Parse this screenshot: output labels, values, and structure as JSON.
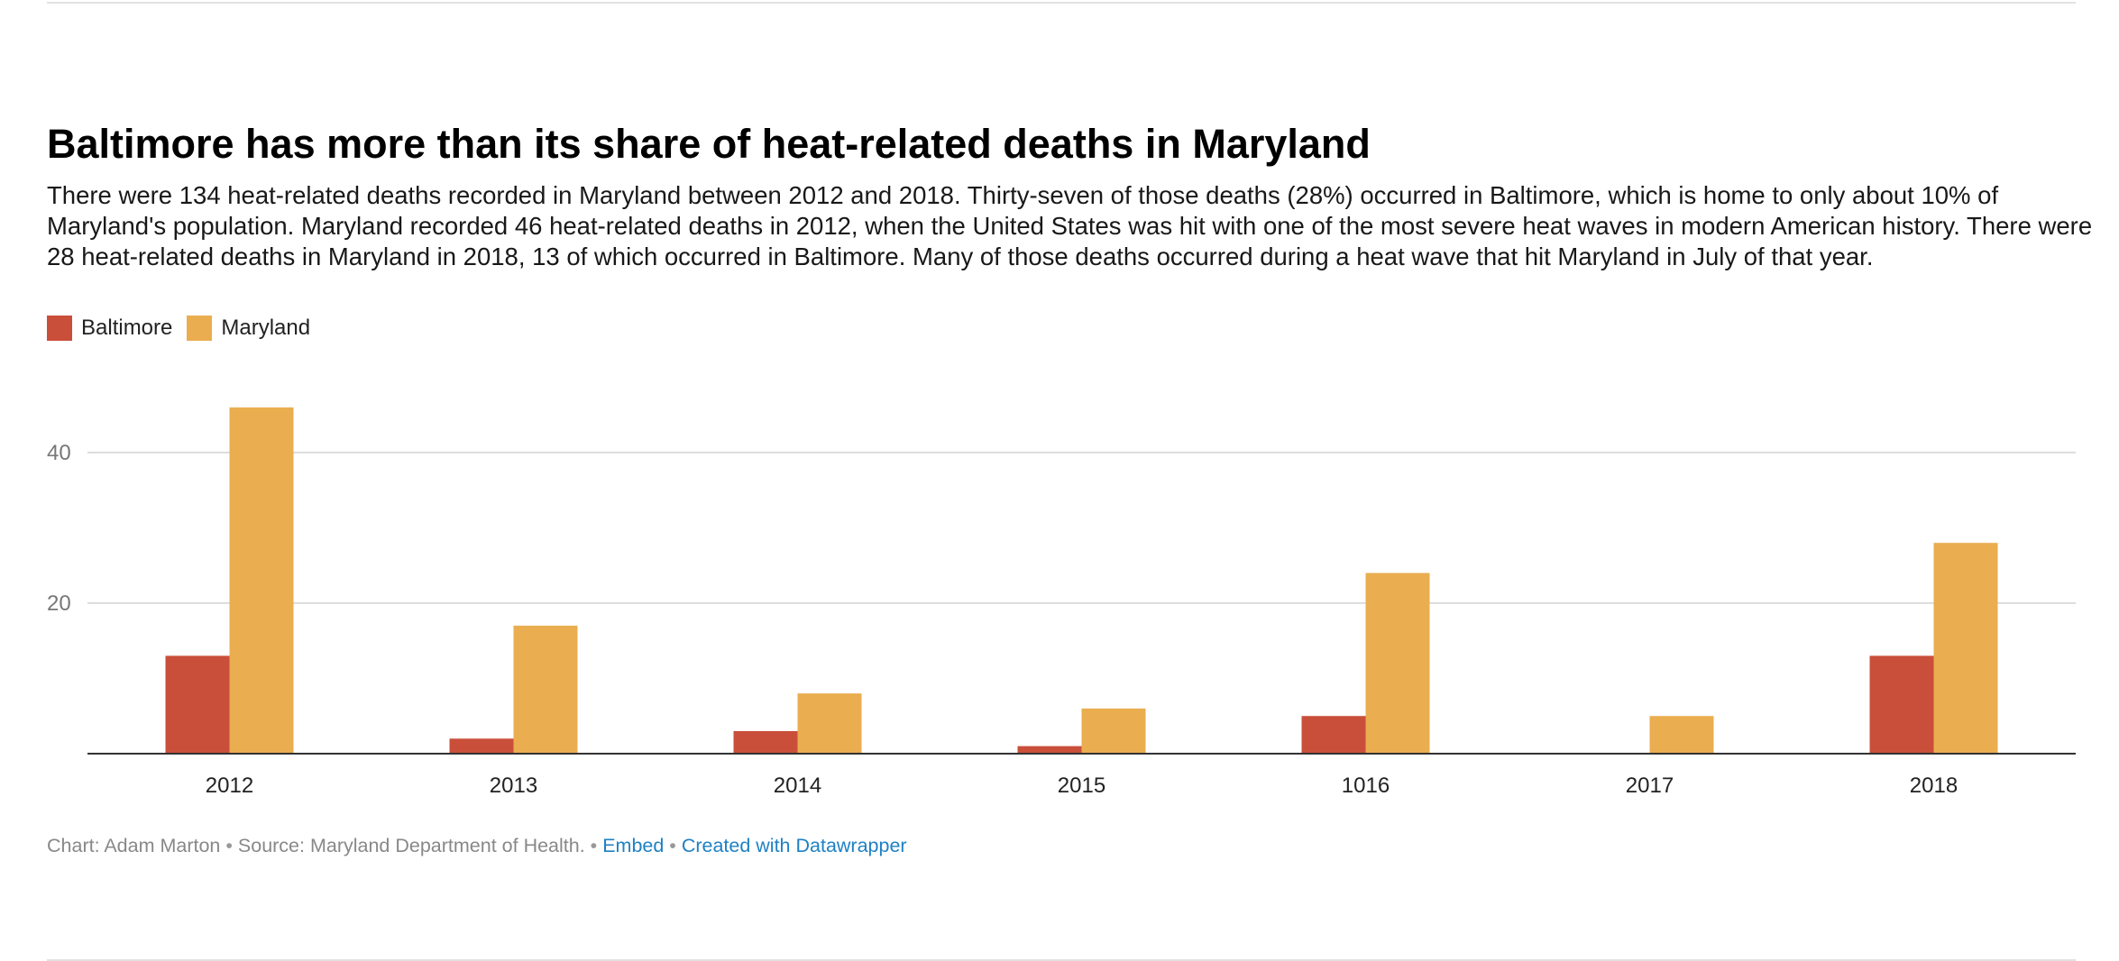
{
  "title": "Baltimore has more than its share of heat-related deaths in Maryland",
  "description": "There were 134 heat-related deaths recorded in Maryland between 2012 and 2018. Thirty-seven of those deaths (28%) occurred in Baltimore, which is home to only about 10% of Maryland's population. Maryland recorded 46 heat-related deaths in 2012, when the United States was hit with one of the most severe heat waves in modern American history. There were 28 heat-related deaths in Maryland in 2018, 13 of which occurred in Baltimore. Many of those deaths occurred during a heat wave that hit Maryland in July of that year.",
  "footer": {
    "byline": "Chart: Adam Marton",
    "source": "Source: Maryland Department of Health.",
    "separator": "•",
    "embed_label": "Embed",
    "credit_label": "Created with Datawrapper"
  },
  "colors": {
    "baltimore": "#c94f3a",
    "maryland": "#eaad4f",
    "gridline": "#dddddd",
    "axis": "#333333",
    "tick_text": "#777777",
    "link": "#1d81c4"
  },
  "chart_data": {
    "type": "bar",
    "categories": [
      "2012",
      "2013",
      "2014",
      "2015",
      "1016",
      "2017",
      "2018"
    ],
    "series": [
      {
        "name": "Baltimore",
        "values": [
          13,
          2,
          3,
          1,
          5,
          0,
          13
        ]
      },
      {
        "name": "Maryland",
        "values": [
          46,
          17,
          8,
          6,
          24,
          5,
          28
        ]
      }
    ],
    "yticks": [
      20,
      40
    ],
    "ylim": [
      0,
      50
    ],
    "grid": true,
    "legend_position": "top-left",
    "xlabel": "",
    "ylabel": ""
  }
}
